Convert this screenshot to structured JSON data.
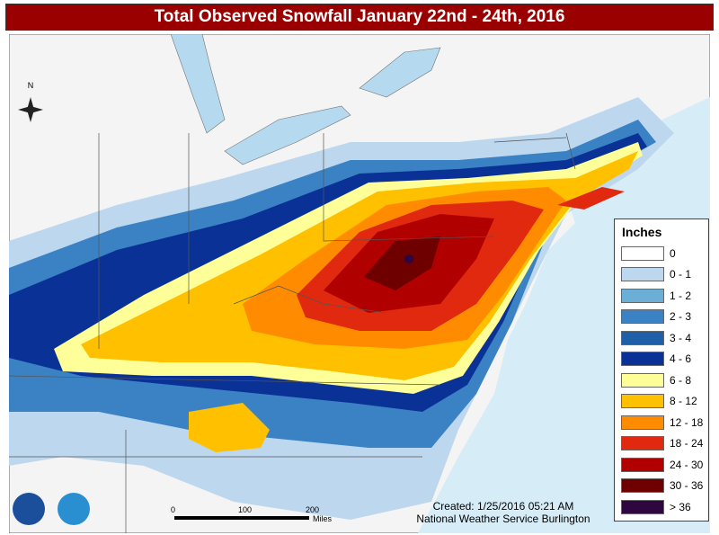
{
  "header": {
    "title": "Total Observed Snowfall January 22nd - 24th, 2016"
  },
  "compass": "N",
  "legend": {
    "title": "Inches",
    "items": [
      {
        "label": "0",
        "color": "#ffffff"
      },
      {
        "label": "0 - 1",
        "color": "#bdd7ee"
      },
      {
        "label": "1 - 2",
        "color": "#6baed6"
      },
      {
        "label": "2 - 3",
        "color": "#3b82c4"
      },
      {
        "label": "3 - 4",
        "color": "#1f5fa8"
      },
      {
        "label": "4 - 6",
        "color": "#0a3296"
      },
      {
        "label": "6 - 8",
        "color": "#ffff99"
      },
      {
        "label": "8 - 12",
        "color": "#ffc000"
      },
      {
        "label": "12 - 18",
        "color": "#ff8c00"
      },
      {
        "label": "18 - 24",
        "color": "#e0290f"
      },
      {
        "label": "24 - 30",
        "color": "#b00000"
      },
      {
        "label": "30 - 36",
        "color": "#6e0000"
      },
      {
        "label": "> 36",
        "color": "#2e0640"
      }
    ]
  },
  "scale_bar": {
    "ticks": [
      "0",
      "100",
      "200"
    ],
    "unit": "Miles"
  },
  "credits": {
    "created": "Created: 1/25/2016 05:21 AM",
    "office": "National Weather Service Burlington"
  }
}
